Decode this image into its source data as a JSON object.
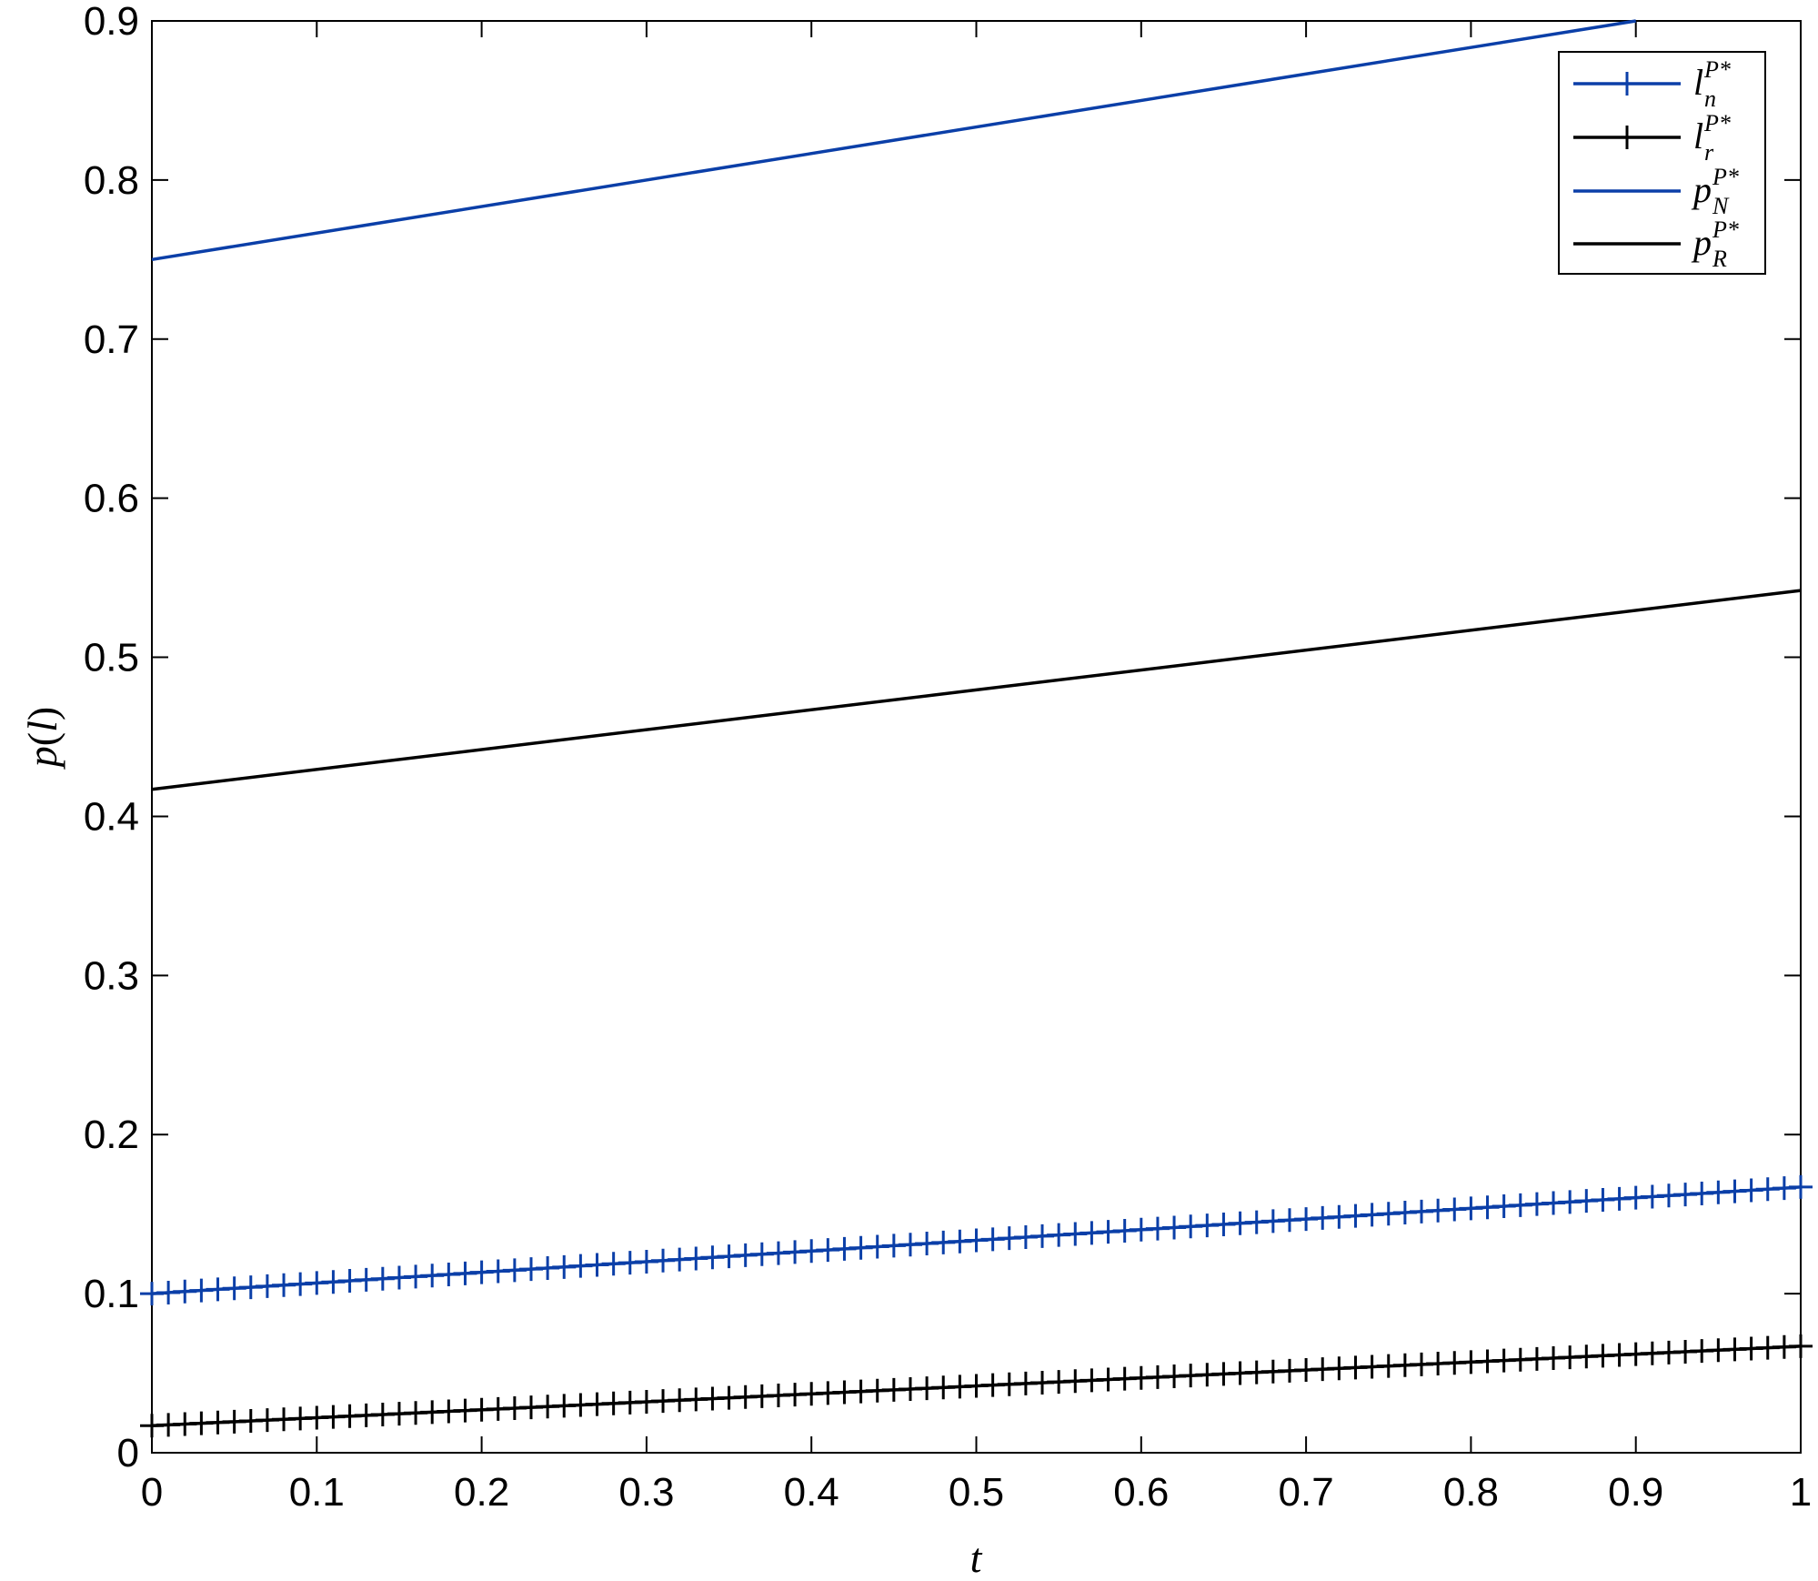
{
  "chart_data": {
    "type": "line",
    "xlabel": {
      "base": "t"
    },
    "ylabel": {
      "base": "p",
      "open": "(",
      "arg": "l",
      "close": ")"
    },
    "xlim": [
      0,
      1
    ],
    "ylim": [
      0,
      0.9
    ],
    "xticks": [
      "0",
      "0.1",
      "0.2",
      "0.3",
      "0.4",
      "0.5",
      "0.6",
      "0.7",
      "0.8",
      "0.9",
      "1"
    ],
    "yticks": [
      "0",
      "0.1",
      "0.2",
      "0.3",
      "0.4",
      "0.5",
      "0.6",
      "0.7",
      "0.8",
      "0.9"
    ],
    "grid": false,
    "legend_position": "top-right",
    "series": [
      {
        "key": "ln",
        "base": "l",
        "sup": "P*",
        "sub": "n",
        "color": "#0b3fa8",
        "marker": "plus",
        "x": [
          0,
          1
        ],
        "y": [
          0.1,
          0.167
        ]
      },
      {
        "key": "lr",
        "base": "l",
        "sup": "P*",
        "sub": "r",
        "color": "#000000",
        "marker": "plus",
        "x": [
          0,
          1
        ],
        "y": [
          0.017,
          0.067
        ]
      },
      {
        "key": "pN",
        "base": "p",
        "sup": "P*",
        "sub": "N",
        "color": "#0b3fa8",
        "marker": "none",
        "x": [
          0,
          0.9
        ],
        "y": [
          0.75,
          0.9
        ]
      },
      {
        "key": "pR",
        "base": "p",
        "sup": "P*",
        "sub": "R",
        "color": "#000000",
        "marker": "none",
        "x": [
          0,
          1
        ],
        "y": [
          0.417,
          0.542
        ]
      }
    ]
  }
}
